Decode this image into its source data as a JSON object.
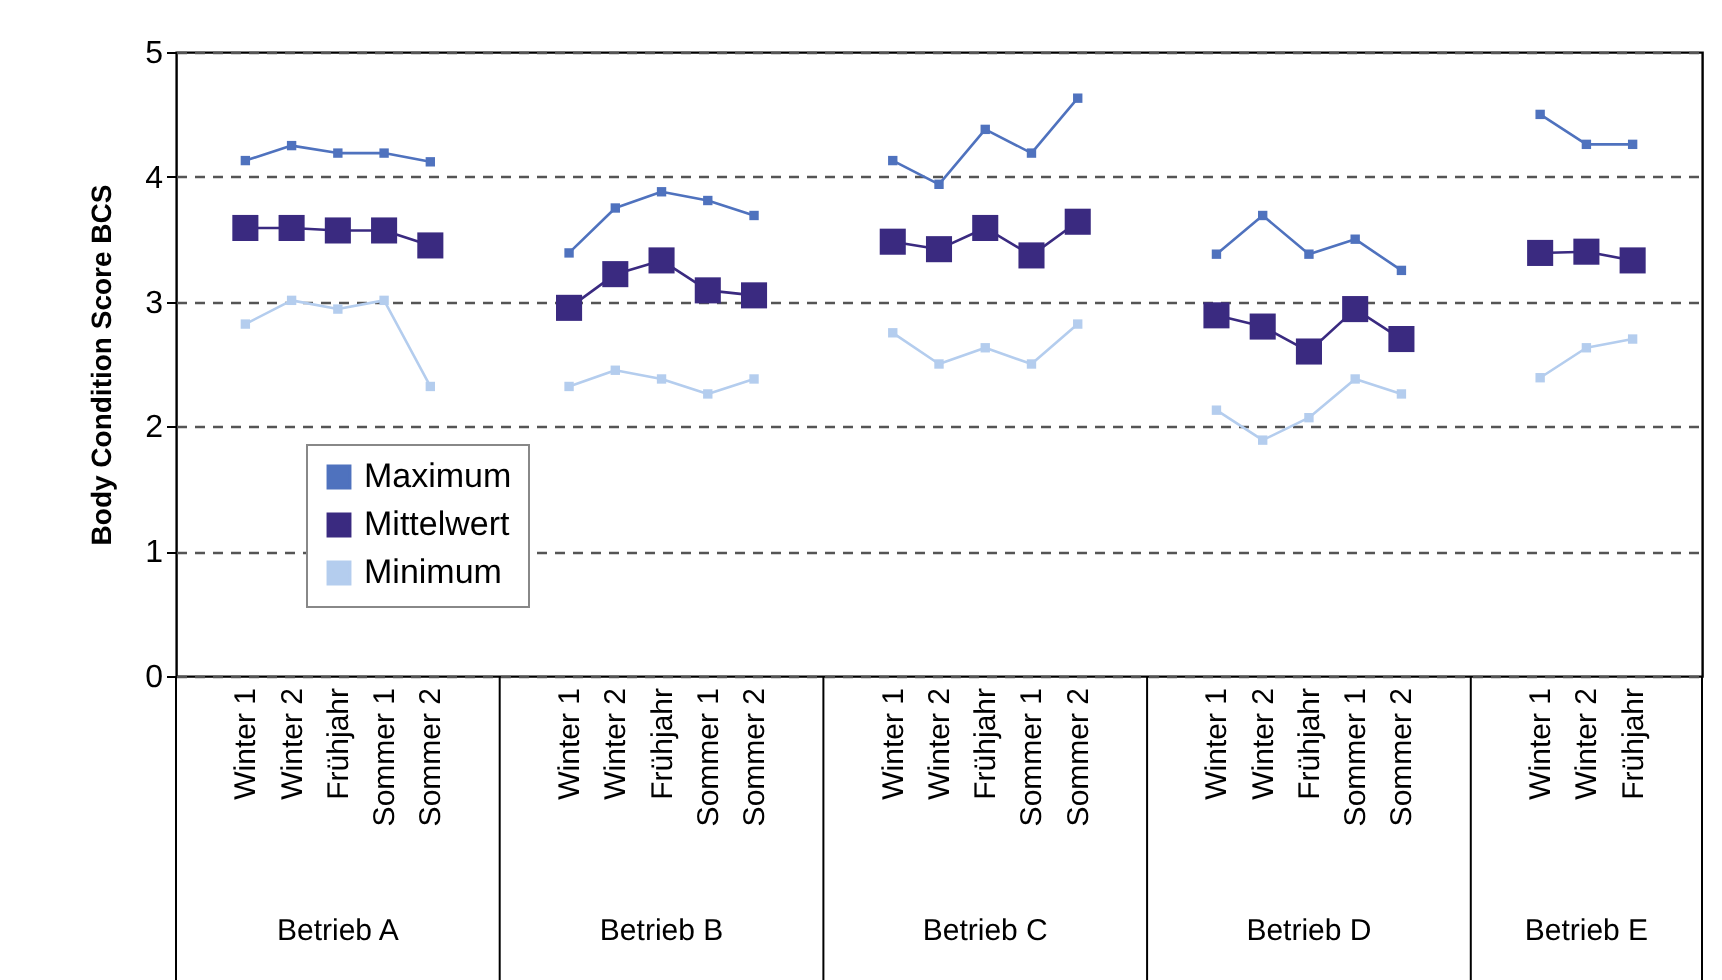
{
  "chart_data": {
    "type": "line",
    "ylabel": "Body Condition Score BCS",
    "categories": [
      null,
      "Winter 1",
      "Winter 2",
      "Frühjahr",
      "Sommer 1",
      "Sommer 2",
      null,
      null,
      "Winter 1",
      "Winter 2",
      "Frühjahr",
      "Sommer 1",
      "Sommer 2",
      null,
      null,
      "Winter 1",
      "Winter 2",
      "Frühjahr",
      "Sommer 1",
      "Sommer 2",
      null,
      null,
      "Winter 1",
      "Winter 2",
      "Frühjahr",
      "Sommer 1",
      "Sommer 2",
      null,
      null,
      "Winter 1",
      "Winter 2",
      "Frühjahr",
      null
    ],
    "annotations": [
      "Betrieb A",
      "Betrieb B",
      "Betrieb C",
      "Betrieb D",
      "Betrieb E"
    ],
    "series": [
      {
        "name": "Maximum",
        "color": "#4f72be",
        "values": [
          null,
          4.13,
          4.25,
          4.19,
          4.19,
          4.12,
          null,
          null,
          3.39,
          3.75,
          3.88,
          3.81,
          3.69,
          null,
          null,
          4.13,
          3.94,
          4.38,
          4.19,
          4.63,
          null,
          null,
          3.38,
          3.69,
          3.38,
          3.5,
          3.25,
          null,
          null,
          4.5,
          4.26,
          4.26,
          null
        ]
      },
      {
        "name": "Mittelwert",
        "color": "#3a2a80",
        "values": [
          null,
          3.59,
          3.59,
          3.57,
          3.57,
          3.45,
          null,
          null,
          2.95,
          3.22,
          3.33,
          3.09,
          3.05,
          null,
          null,
          3.48,
          3.42,
          3.59,
          3.37,
          3.64,
          null,
          null,
          2.89,
          2.8,
          2.6,
          2.94,
          2.7,
          null,
          null,
          3.39,
          3.4,
          3.33,
          null
        ]
      },
      {
        "name": "Minimum",
        "color": "#b4cdee",
        "values": [
          null,
          2.82,
          3.01,
          2.94,
          3.01,
          2.32,
          null,
          null,
          2.32,
          2.45,
          2.38,
          2.26,
          2.38,
          null,
          null,
          2.75,
          2.5,
          2.63,
          2.5,
          2.82,
          null,
          null,
          2.13,
          1.89,
          2.07,
          2.38,
          2.26,
          null,
          null,
          2.39,
          2.63,
          2.7,
          null
        ]
      }
    ],
    "ylim": [
      0,
      5
    ],
    "yticks": [
      0,
      1,
      2,
      3,
      4,
      5
    ],
    "grid": "y",
    "legend": "bottom left",
    "marker": "square"
  }
}
